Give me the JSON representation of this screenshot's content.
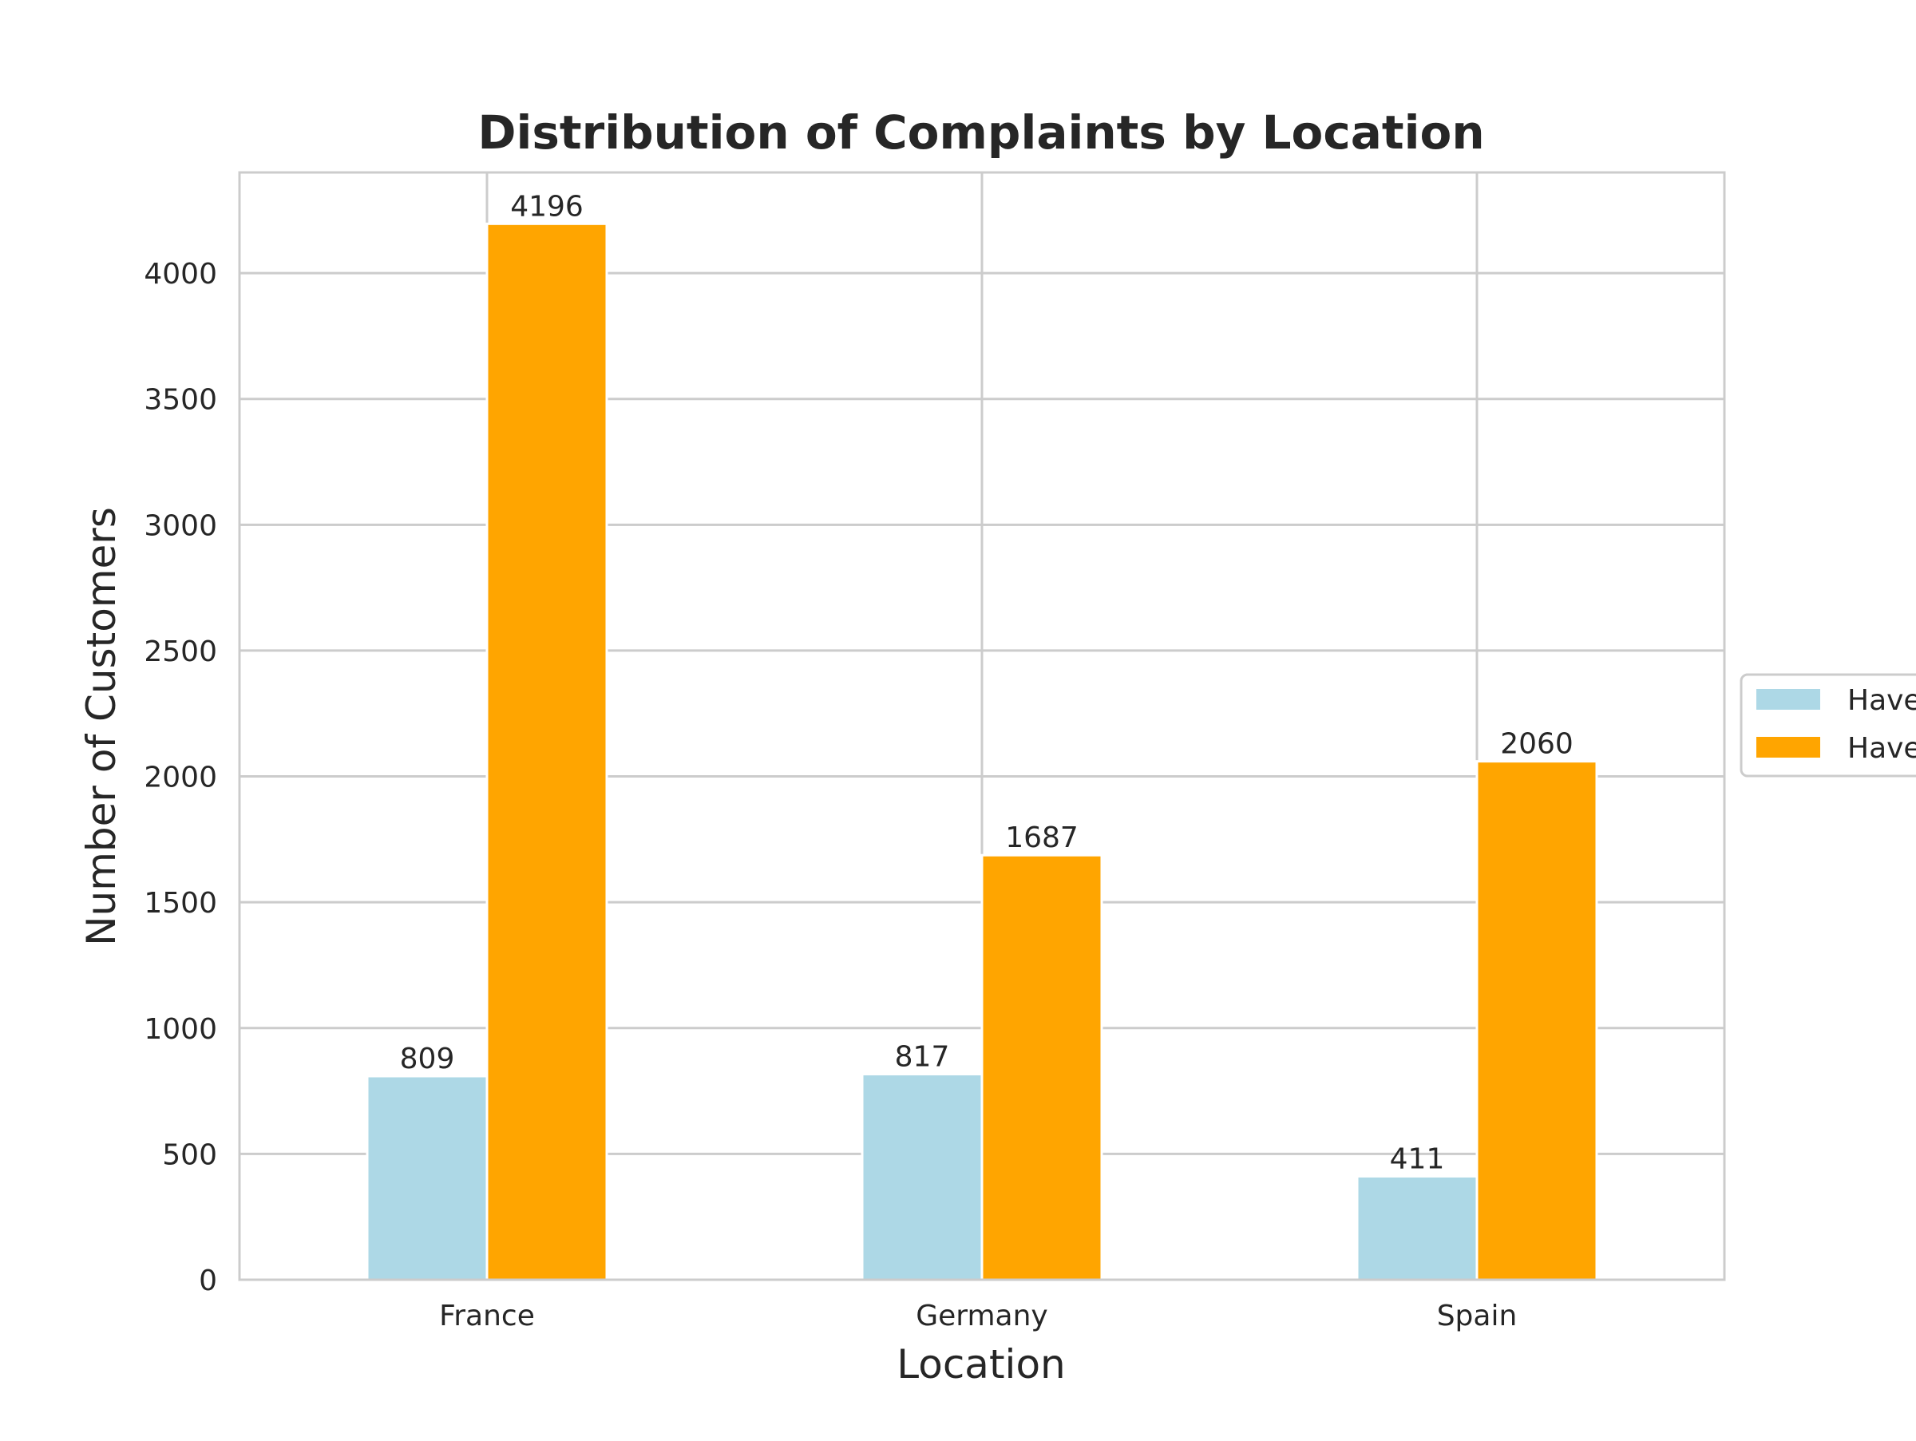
{
  "chart_data": {
    "type": "bar",
    "title": "Distribution of Complaints by Location",
    "xlabel": "Location",
    "ylabel": "Number of Customers",
    "categories": [
      "France",
      "Germany",
      "Spain"
    ],
    "series": [
      {
        "name": "Have",
        "color": "#add8e6",
        "values": [
          809,
          817,
          411
        ]
      },
      {
        "name": "Have",
        "color": "#ffa500",
        "values": [
          4196,
          1687,
          2060
        ]
      }
    ],
    "ylim": [
      0,
      4400
    ],
    "yticks": [
      0,
      500,
      1000,
      1500,
      2000,
      2500,
      3000,
      3500,
      4000
    ],
    "grid": true,
    "legend_position": "center-right (clipped)",
    "colors": {
      "grid": "#cccccc",
      "spine": "#cccccc",
      "text": "#262626"
    }
  }
}
